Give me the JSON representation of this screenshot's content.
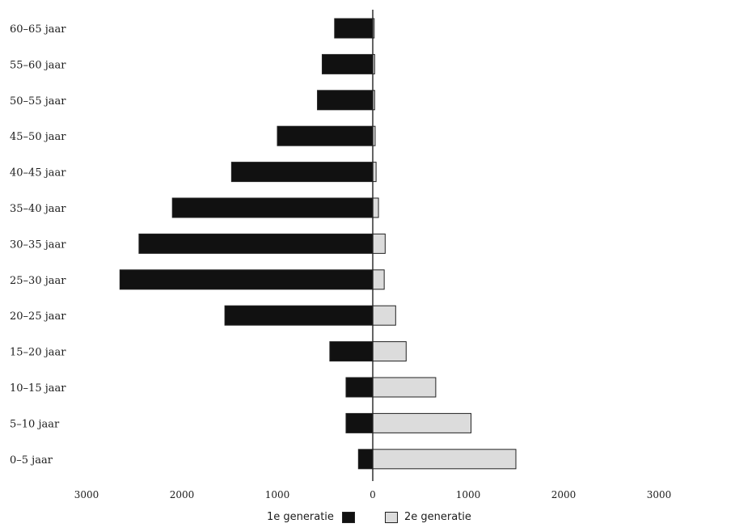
{
  "chart_data": {
    "type": "bar",
    "orientation": "horizontal",
    "categories": [
      "0-5 jaar",
      "5-10 jaar",
      "10-15 jaar",
      "15-20 jaar",
      "20-25 jaar",
      "25-30 jaar",
      "30-35 jaar",
      "35-40 jaar",
      "40-45 jaar",
      "45-50 jaar",
      "50-55 jaar",
      "55-60 jaar",
      "60-65 jaar"
    ],
    "category_labels": [
      "0–5 jaar",
      "5–10 jaar",
      "10–15 jaar",
      "15–20 jaar",
      "20–25 jaar",
      "25–30 jaar",
      "30–35 jaar",
      "35–40 jaar",
      "40–45 jaar",
      "45–50 jaar",
      "50–55 jaar",
      "55–60 jaar",
      "60–65 jaar"
    ],
    "series": [
      {
        "name": "1e generatie",
        "color": "#111111",
        "direction": "left",
        "values": [
          150,
          280,
          280,
          450,
          1550,
          2650,
          2450,
          2100,
          1480,
          1000,
          580,
          530,
          400
        ]
      },
      {
        "name": "2e generatie",
        "color": "#dcdcdc",
        "direction": "right",
        "values": [
          1500,
          1030,
          660,
          350,
          240,
          120,
          130,
          60,
          35,
          25,
          20,
          20,
          15
        ]
      }
    ],
    "xticks": [
      3000,
      2000,
      1000,
      0,
      1000,
      2000,
      3000
    ],
    "xlim": [
      -3000,
      3000
    ],
    "title": "",
    "xlabel": "",
    "ylabel": "",
    "legend_position": "bottom"
  },
  "legend": {
    "first_label": "1e generatie",
    "second_label": "2e generatie"
  }
}
